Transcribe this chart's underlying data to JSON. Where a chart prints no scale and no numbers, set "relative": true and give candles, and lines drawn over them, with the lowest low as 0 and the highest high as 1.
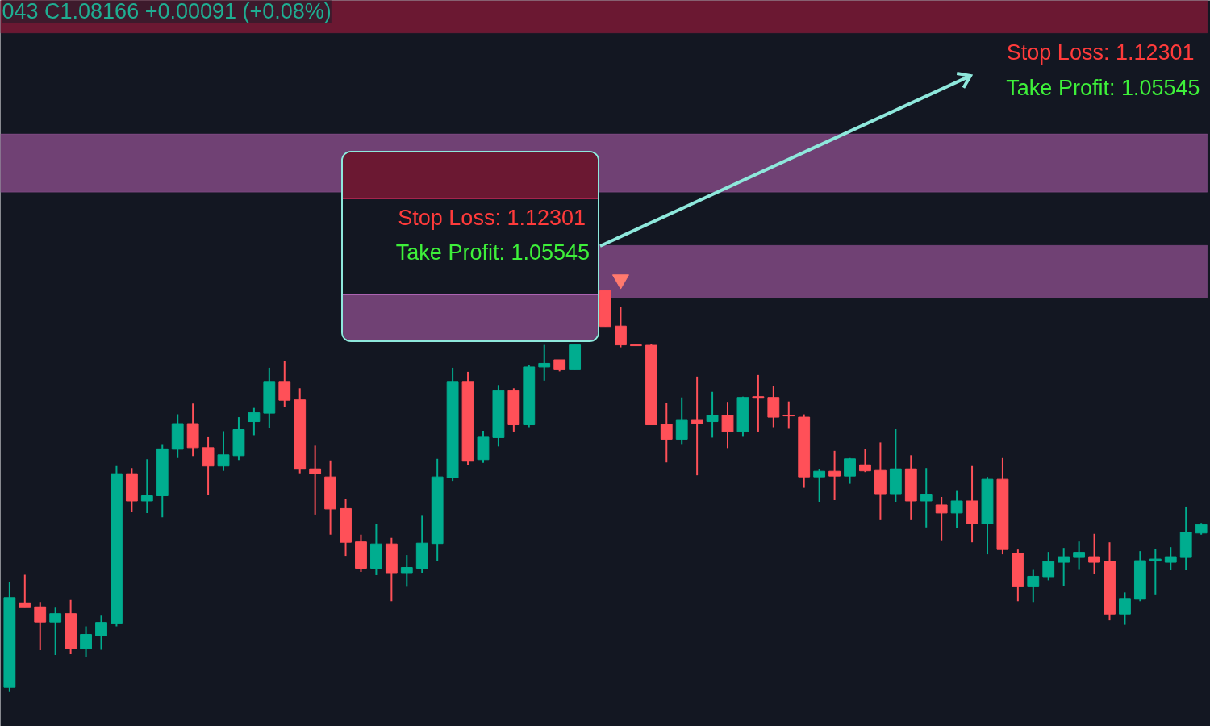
{
  "chart_data": {
    "type": "candlestick",
    "relative": true,
    "categories": [
      null,
      null,
      null,
      null,
      null,
      null,
      null,
      null,
      null,
      null,
      null,
      null,
      null,
      null,
      null,
      null,
      null,
      null,
      null,
      null,
      null,
      null,
      null,
      null,
      null,
      null,
      null,
      null,
      null,
      null,
      null,
      null,
      null,
      null,
      null,
      null,
      null,
      null,
      null,
      null,
      null,
      null,
      null,
      null,
      null,
      null,
      null,
      null,
      null,
      null,
      null,
      null,
      null,
      null,
      null,
      null,
      null,
      null,
      null,
      null,
      null,
      null,
      null,
      null,
      null,
      null,
      null,
      null,
      null,
      null,
      null,
      null,
      null,
      null,
      null,
      null,
      null,
      null,
      null
    ],
    "ohlc": [
      [
        0.011,
        0.274,
        0,
        0.235
      ],
      [
        0.222,
        0.292,
        0.21,
        0.21
      ],
      [
        0.212,
        0.224,
        0.104,
        0.174
      ],
      [
        0.174,
        0.21,
        0.092,
        0.195
      ],
      [
        0.195,
        0.229,
        0.094,
        0.107
      ],
      [
        0.107,
        0.163,
        0.086,
        0.143
      ],
      [
        0.14,
        0.19,
        0.105,
        0.173
      ],
      [
        0.171,
        0.563,
        0.163,
        0.544
      ],
      [
        0.544,
        0.558,
        0.448,
        0.476
      ],
      [
        0.476,
        0.58,
        0.446,
        0.489
      ],
      [
        0.489,
        0.616,
        0.435,
        0.606
      ],
      [
        0.605,
        0.692,
        0.583,
        0.669
      ],
      [
        0.669,
        0.719,
        0.588,
        0.609
      ],
      [
        0.609,
        0.635,
        0.49,
        0.563
      ],
      [
        0.563,
        0.65,
        0.551,
        0.591
      ],
      [
        0.589,
        0.685,
        0.578,
        0.654
      ],
      [
        0.674,
        0.708,
        0.64,
        0.696
      ],
      [
        0.695,
        0.808,
        0.658,
        0.774
      ],
      [
        0.774,
        0.825,
        0.71,
        0.727
      ],
      [
        0.728,
        0.757,
        0.545,
        0.555
      ],
      [
        0.556,
        0.614,
        0.442,
        0.544
      ],
      [
        0.536,
        0.577,
        0.392,
        0.456
      ],
      [
        0.457,
        0.48,
        0.339,
        0.373
      ],
      [
        0.374,
        0.392,
        0.299,
        0.308
      ],
      [
        0.308,
        0.419,
        0.291,
        0.369
      ],
      [
        0.369,
        0.384,
        0.226,
        0.297
      ],
      [
        0.297,
        0.341,
        0.262,
        0.31
      ],
      [
        0.308,
        0.439,
        0.297,
        0.371
      ],
      [
        0.37,
        0.581,
        0.327,
        0.536
      ],
      [
        0.534,
        0.808,
        0.526,
        0.774
      ],
      [
        0.774,
        0.798,
        0.565,
        0.575
      ],
      [
        0.579,
        0.651,
        0.571,
        0.635
      ],
      [
        0.634,
        0.765,
        0.612,
        0.751
      ],
      [
        0.751,
        0.757,
        0.649,
        0.666
      ],
      [
        0.666,
        0.815,
        0.66,
        0.81
      ],
      [
        0.81,
        0.865,
        0.776,
        0.819
      ],
      [
        0.828,
        0.828,
        0.799,
        0.803
      ],
      [
        0.803,
        0.865,
        0.803,
        0.865
      ],
      null,
      [
        1.0,
        1.0,
        0.911,
        0.911
      ],
      [
        0.912,
        0.959,
        0.859,
        0.865
      ],
      [
        0.865,
        0.865,
        0.863,
        0.863
      ],
      [
        0.864,
        0.868,
        0.666,
        0.666
      ],
      [
        0.667,
        0.721,
        0.572,
        0.63
      ],
      [
        0.63,
        0.734,
        0.616,
        0.677
      ],
      [
        0.677,
        0.786,
        0.54,
        0.67
      ],
      [
        0.674,
        0.748,
        0.634,
        0.69
      ],
      [
        0.69,
        0.723,
        0.608,
        0.649
      ],
      [
        0.649,
        0.736,
        0.636,
        0.734
      ],
      [
        0.736,
        0.79,
        0.649,
        0.732
      ],
      [
        0.734,
        0.763,
        0.66,
        0.685
      ],
      [
        0.69,
        0.724,
        0.656,
        0.688
      ],
      [
        0.685,
        0.692,
        0.509,
        0.536
      ],
      [
        0.536,
        0.556,
        0.474,
        0.55
      ],
      [
        0.55,
        0.601,
        0.478,
        0.538
      ],
      [
        0.538,
        0.583,
        0.519,
        0.581
      ],
      [
        0.566,
        0.606,
        0.548,
        0.551
      ],
      [
        0.552,
        0.622,
        0.428,
        0.492
      ],
      [
        0.492,
        0.655,
        0.474,
        0.556
      ],
      [
        0.556,
        0.59,
        0.428,
        0.476
      ],
      [
        0.476,
        0.558,
        0.41,
        0.491
      ],
      [
        0.466,
        0.486,
        0.376,
        0.446
      ],
      [
        0.446,
        0.501,
        0.408,
        0.476
      ],
      [
        0.476,
        0.563,
        0.373,
        0.419
      ],
      [
        0.419,
        0.536,
        0.343,
        0.53
      ],
      [
        0.53,
        0.583,
        0.343,
        0.355
      ],
      [
        0.346,
        0.355,
        0.226,
        0.262
      ],
      [
        0.262,
        0.306,
        0.224,
        0.288
      ],
      [
        0.287,
        0.349,
        0.278,
        0.325
      ],
      [
        0.323,
        0.359,
        0.263,
        0.337
      ],
      [
        0.335,
        0.375,
        0.306,
        0.348
      ],
      [
        0.337,
        0.394,
        0.293,
        0.323
      ],
      [
        0.325,
        0.373,
        0.178,
        0.194
      ],
      [
        0.194,
        0.248,
        0.167,
        0.233
      ],
      [
        0.231,
        0.351,
        0.226,
        0.327
      ],
      [
        0.326,
        0.357,
        0.243,
        0.331
      ],
      [
        0.323,
        0.361,
        0.304,
        0.337
      ],
      [
        0.335,
        0.462,
        0.304,
        0.398
      ],
      [
        0.396,
        0.421,
        0.392,
        0.417
      ]
    ],
    "colors": [
      "#00ad8f",
      "#ff5058",
      "#ff5058",
      "#00ad8f",
      "#ff5058",
      "#00ad8f",
      "#00ad8f",
      "#00ad8f",
      "#ff5058",
      "#00ad8f",
      "#00ad8f",
      "#00ad8f",
      "#ff5058",
      "#ff5058",
      "#00ad8f",
      "#00ad8f",
      "#00ad8f",
      "#00ad8f",
      "#ff5058",
      "#ff5058",
      "#ff5058",
      "#ff5058",
      "#ff5058",
      "#ff5058",
      "#00ad8f",
      "#ff5058",
      "#00ad8f",
      "#00ad8f",
      "#00ad8f",
      "#00ad8f",
      "#ff5058",
      "#00ad8f",
      "#00ad8f",
      "#ff5058",
      "#00ad8f",
      "#00ad8f",
      "#ff5058",
      "#00ad8f",
      null,
      "#ff5058",
      "#ff5058",
      "#ff5058",
      "#ff5058",
      "#ff5058",
      "#00ad8f",
      "#ff5058",
      "#00ad8f",
      "#ff5058",
      "#00ad8f",
      "#ff5058",
      "#ff5058",
      "#ff5058",
      "#ff5058",
      "#00ad8f",
      "#ff5058",
      "#00ad8f",
      "#ff5058",
      "#ff5058",
      "#00ad8f",
      "#ff5058",
      "#00ad8f",
      "#ff5058",
      "#00ad8f",
      "#ff5058",
      "#00ad8f",
      "#ff5058",
      "#ff5058",
      "#00ad8f",
      "#00ad8f",
      "#00ad8f",
      "#00ad8f",
      "#ff5058",
      "#ff5058",
      "#00ad8f",
      "#00ad8f",
      "#00ad8f",
      "#00ad8f",
      "#00ad8f",
      "#00ad8f"
    ],
    "series": [
      {
        "type": "scatter",
        "color": "#ff7a6e",
        "marker": "triangle",
        "values": [
          null,
          null,
          null,
          null,
          null,
          null,
          null,
          null,
          null,
          null,
          null,
          null,
          null,
          null,
          null,
          null,
          null,
          null,
          null,
          null,
          null,
          null,
          null,
          null,
          null,
          null,
          null,
          null,
          null,
          null,
          null,
          null,
          null,
          null,
          null,
          null,
          null,
          null,
          null,
          null,
          1.028,
          null,
          null,
          null,
          null,
          null,
          null,
          null,
          null,
          null,
          null,
          null,
          null,
          null,
          null,
          null,
          null,
          null,
          null,
          null,
          null,
          null,
          null,
          null,
          null,
          null,
          null,
          null,
          null,
          null,
          null,
          null,
          null,
          null,
          null,
          null,
          null,
          null,
          null
        ]
      }
    ],
    "bands": [
      {
        "axis": "y",
        "from": 1.643,
        "to": 1.724,
        "color": "#6b1832"
      },
      {
        "axis": "y",
        "from": 1.246,
        "to": 1.391,
        "color": "#704174"
      },
      {
        "axis": "y",
        "from": 0.982,
        "to": 1.113,
        "color": "#704174"
      }
    ],
    "annotations": [
      "043 C1.08166 +0.00091 (+0.08%)",
      "Stop Loss: 1.12301",
      "Take Profit: 1.05545",
      "Stop Loss: 1.12301",
      "Take Profit: 1.05545"
    ]
  }
}
